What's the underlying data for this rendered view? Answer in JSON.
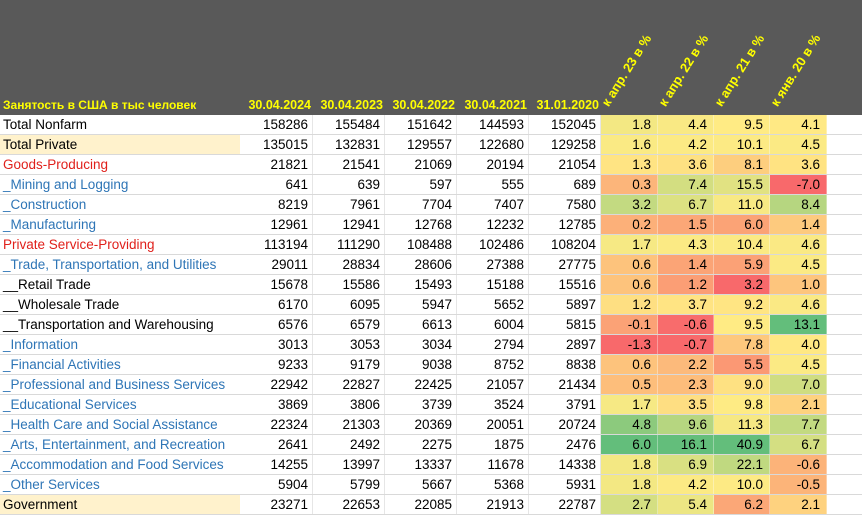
{
  "header": {
    "title": "Занятость в США в тыс человек",
    "dates": [
      "30.04.2024",
      "30.04.2023",
      "30.04.2022",
      "30.04.2021",
      "31.01.2020"
    ],
    "pct_labels": [
      "к апр. 23 в %",
      "к апр. 22 в %",
      "к апр. 21 в %",
      "к янв. 20 в %"
    ]
  },
  "colors": {
    "header_bg": "#595959",
    "header_text": "#ffff00",
    "red_label": "#e0201b",
    "blue_label": "#2e75b6",
    "highlight_label": "#fff2cc",
    "scale_low": "#f8696b",
    "scale_mid": "#ffeb84",
    "scale_high": "#63be7b"
  },
  "rows": [
    {
      "label": "Total Nonfarm",
      "style": "black",
      "values": [
        "158286",
        "155484",
        "151642",
        "144593",
        "152045"
      ],
      "pct": [
        "1.8",
        "4.4",
        "9.5",
        "4.1"
      ]
    },
    {
      "label": "Total Private",
      "style": "black-hl",
      "values": [
        "135015",
        "132831",
        "129557",
        "122680",
        "129258"
      ],
      "pct": [
        "1.6",
        "4.2",
        "10.1",
        "4.5"
      ]
    },
    {
      "label": "Goods-Producing",
      "style": "red",
      "values": [
        "21821",
        "21541",
        "21069",
        "20194",
        "21054"
      ],
      "pct": [
        "1.3",
        "3.6",
        "8.1",
        "3.6"
      ]
    },
    {
      "label": "_Mining and Logging",
      "style": "blue",
      "values": [
        "641",
        "639",
        "597",
        "555",
        "689"
      ],
      "pct": [
        "0.3",
        "7.4",
        "15.5",
        "-7.0"
      ]
    },
    {
      "label": "_Construction",
      "style": "blue",
      "values": [
        "8219",
        "7961",
        "7704",
        "7407",
        "7580"
      ],
      "pct": [
        "3.2",
        "6.7",
        "11.0",
        "8.4"
      ]
    },
    {
      "label": "_Manufacturing",
      "style": "blue",
      "values": [
        "12961",
        "12941",
        "12768",
        "12232",
        "12785"
      ],
      "pct": [
        "0.2",
        "1.5",
        "6.0",
        "1.4"
      ]
    },
    {
      "label": "Private Service-Providing",
      "style": "red",
      "values": [
        "113194",
        "111290",
        "108488",
        "102486",
        "108204"
      ],
      "pct": [
        "1.7",
        "4.3",
        "10.4",
        "4.6"
      ]
    },
    {
      "label": "_Trade, Transportation, and Utilities",
      "style": "blue",
      "values": [
        "29011",
        "28834",
        "28606",
        "27388",
        "27775"
      ],
      "pct": [
        "0.6",
        "1.4",
        "5.9",
        "4.5"
      ]
    },
    {
      "label": "__Retail Trade",
      "style": "black",
      "values": [
        "15678",
        "15586",
        "15493",
        "15188",
        "15516"
      ],
      "pct": [
        "0.6",
        "1.2",
        "3.2",
        "1.0"
      ]
    },
    {
      "label": "__Wholesale Trade",
      "style": "black",
      "values": [
        "6170",
        "6095",
        "5947",
        "5652",
        "5897"
      ],
      "pct": [
        "1.2",
        "3.7",
        "9.2",
        "4.6"
      ]
    },
    {
      "label": "__Transportation and Warehousing",
      "style": "black",
      "values": [
        "6576",
        "6579",
        "6613",
        "6004",
        "5815"
      ],
      "pct": [
        "-0.1",
        "-0.6",
        "9.5",
        "13.1"
      ]
    },
    {
      "label": "_Information",
      "style": "blue",
      "values": [
        "3013",
        "3053",
        "3034",
        "2794",
        "2897"
      ],
      "pct": [
        "-1.3",
        "-0.7",
        "7.8",
        "4.0"
      ]
    },
    {
      "label": "_Financial Activities",
      "style": "blue",
      "values": [
        "9233",
        "9179",
        "9038",
        "8752",
        "8838"
      ],
      "pct": [
        "0.6",
        "2.2",
        "5.5",
        "4.5"
      ]
    },
    {
      "label": "_Professional and Business Services",
      "style": "blue",
      "values": [
        "22942",
        "22827",
        "22425",
        "21057",
        "21434"
      ],
      "pct": [
        "0.5",
        "2.3",
        "9.0",
        "7.0"
      ]
    },
    {
      "label": "_Educational Services",
      "style": "blue",
      "values": [
        "3869",
        "3806",
        "3739",
        "3524",
        "3791"
      ],
      "pct": [
        "1.7",
        "3.5",
        "9.8",
        "2.1"
      ]
    },
    {
      "label": "_Health Care and Social Assistance",
      "style": "blue",
      "values": [
        "22324",
        "21303",
        "20369",
        "20051",
        "20724"
      ],
      "pct": [
        "4.8",
        "9.6",
        "11.3",
        "7.7"
      ]
    },
    {
      "label": "_Arts, Entertainment, and Recreation",
      "style": "blue",
      "values": [
        "2641",
        "2492",
        "2275",
        "1875",
        "2476"
      ],
      "pct": [
        "6.0",
        "16.1",
        "40.9",
        "6.7"
      ]
    },
    {
      "label": "_Accommodation and Food Services",
      "style": "blue",
      "values": [
        "14255",
        "13997",
        "13337",
        "11678",
        "14338"
      ],
      "pct": [
        "1.8",
        "6.9",
        "22.1",
        "-0.6"
      ]
    },
    {
      "label": "_Other Services",
      "style": "blue",
      "values": [
        "5904",
        "5799",
        "5667",
        "5368",
        "5931"
      ],
      "pct": [
        "1.8",
        "4.2",
        "10.0",
        "-0.5"
      ]
    },
    {
      "label": "Government",
      "style": "black-hl",
      "values": [
        "23271",
        "22653",
        "22085",
        "21913",
        "22787"
      ],
      "pct": [
        "2.7",
        "5.4",
        "6.2",
        "2.1"
      ]
    }
  ]
}
